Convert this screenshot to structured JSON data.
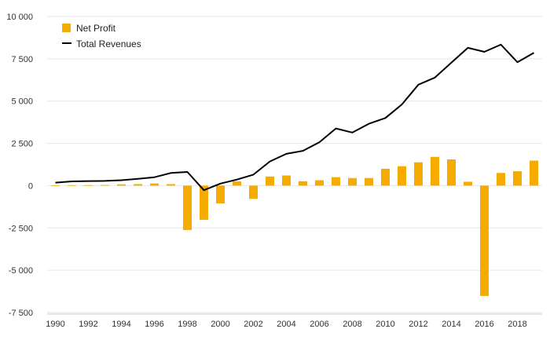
{
  "chart_data": {
    "type": "bar",
    "x": [
      1990,
      1991,
      1992,
      1993,
      1994,
      1995,
      1996,
      1997,
      1998,
      1999,
      2000,
      2001,
      2002,
      2003,
      2004,
      2005,
      2006,
      2007,
      2008,
      2009,
      2010,
      2011,
      2012,
      2013,
      2014,
      2015,
      2016,
      2017,
      2018,
      2019
    ],
    "series": [
      {
        "name": "Net Profit",
        "type": "bar",
        "color": "#f5ab00",
        "values": [
          20,
          30,
          30,
          40,
          80,
          90,
          130,
          90,
          -2620,
          -2020,
          -1050,
          250,
          -780,
          540,
          600,
          260,
          320,
          500,
          450,
          450,
          1000,
          1150,
          1380,
          1700,
          1550,
          230,
          -6520,
          750,
          850,
          1480
        ]
      },
      {
        "name": "Total Revenues",
        "type": "line",
        "color": "#000000",
        "values": [
          180,
          250,
          270,
          280,
          320,
          400,
          500,
          750,
          810,
          -270,
          120,
          360,
          650,
          1430,
          1880,
          2060,
          2570,
          3380,
          3140,
          3660,
          4000,
          4800,
          5970,
          6390,
          7270,
          8150,
          7910,
          8340,
          7300,
          7850
        ]
      }
    ],
    "yticks": [
      10000,
      7500,
      5000,
      2500,
      0,
      -2500,
      -5000,
      -7500
    ],
    "ytick_labels": [
      "10 000",
      "7 500",
      "5 000",
      "2 500",
      "0",
      "-2 500",
      "-5 000",
      "-7 500"
    ],
    "xticks": [
      1990,
      1992,
      1994,
      1996,
      1998,
      2000,
      2002,
      2004,
      2006,
      2008,
      2010,
      2012,
      2014,
      2016,
      2018
    ],
    "xtick_labels": [
      "1990",
      "1992",
      "1994",
      "1996",
      "1998",
      "2000",
      "2002",
      "2004",
      "2006",
      "2008",
      "2010",
      "2012",
      "2014",
      "2016",
      "2018"
    ],
    "ylim": [
      -7500,
      10000
    ],
    "xlim": [
      1989.5,
      2019.5
    ],
    "grid": true,
    "legend_position": "top-left",
    "title": "",
    "xlabel": "",
    "ylabel": ""
  }
}
